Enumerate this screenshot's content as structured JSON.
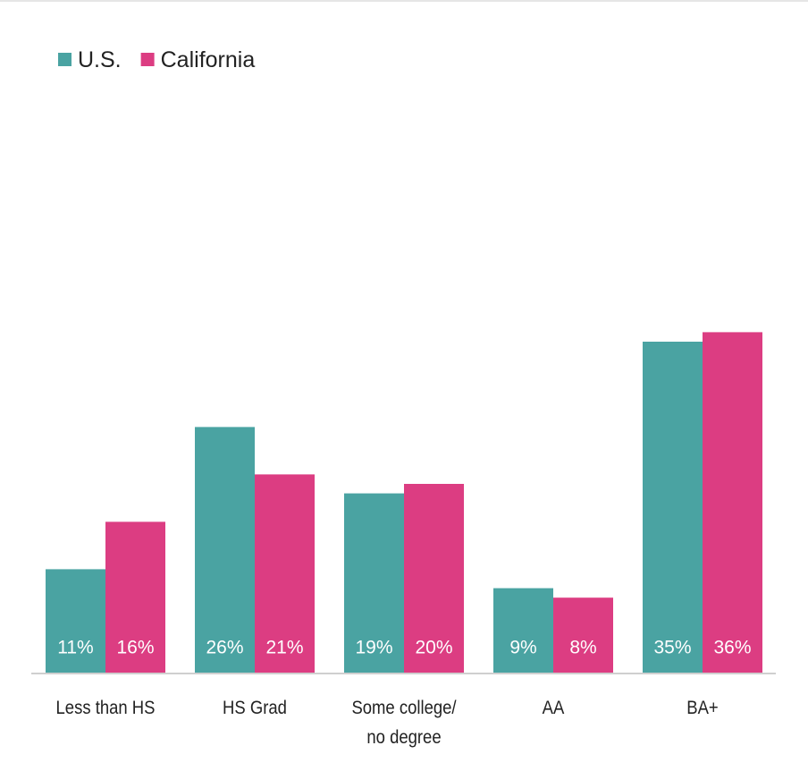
{
  "chart_data": {
    "type": "bar",
    "categories": [
      "Less than HS",
      "HS Grad",
      "Some college/\nno degree",
      "AA",
      "BA+"
    ],
    "series": [
      {
        "name": "U.S.",
        "color": "#4aa3a2",
        "values": [
          11,
          26,
          19,
          9,
          35
        ],
        "value_labels": [
          "11%",
          "26%",
          "19%",
          "9%",
          "35%"
        ]
      },
      {
        "name": "California",
        "color": "#dc3d82",
        "values": [
          16,
          21,
          20,
          8,
          36
        ],
        "value_labels": [
          "16%",
          "21%",
          "20%",
          "8%",
          "36%"
        ]
      }
    ],
    "legend": "top-left"
  }
}
